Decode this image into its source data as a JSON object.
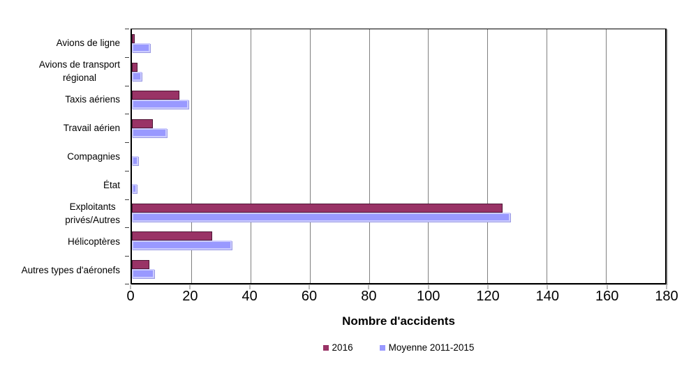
{
  "chart_data": {
    "type": "bar",
    "orientation": "horizontal",
    "title": "",
    "xlabel": "Nombre d'accidents",
    "ylabel": "",
    "xlim": [
      0,
      180
    ],
    "xticks": [
      0,
      20,
      40,
      60,
      80,
      100,
      120,
      140,
      160,
      180
    ],
    "grid": true,
    "legend_position": "bottom",
    "categories": [
      "Avions de ligne",
      "Avions de transport\nrégional",
      "Taxis aériens",
      "Travail aérien",
      "Compagnies",
      "État",
      "Exploitants\nprivés/Autres",
      "Hélicoptères",
      "Autres types d'aéronefs"
    ],
    "series": [
      {
        "name": "2016",
        "color": "#993366",
        "border_color": "#4d1535",
        "values": [
          1,
          2,
          16,
          7,
          0,
          0,
          125,
          27,
          6
        ]
      },
      {
        "name": "Moyenne 2011-2015",
        "color": "#9999FF",
        "border_color": "#ccccfe",
        "shadow_color": "#9a9ae2",
        "values": [
          6.2,
          3.4,
          19,
          11.8,
          2.2,
          1.6,
          127.6,
          33.8,
          7.6
        ]
      }
    ],
    "colors": {
      "gridline": "#7f7f7f",
      "axis": "#000000",
      "text": "#000000",
      "background": "#ffffff"
    }
  }
}
